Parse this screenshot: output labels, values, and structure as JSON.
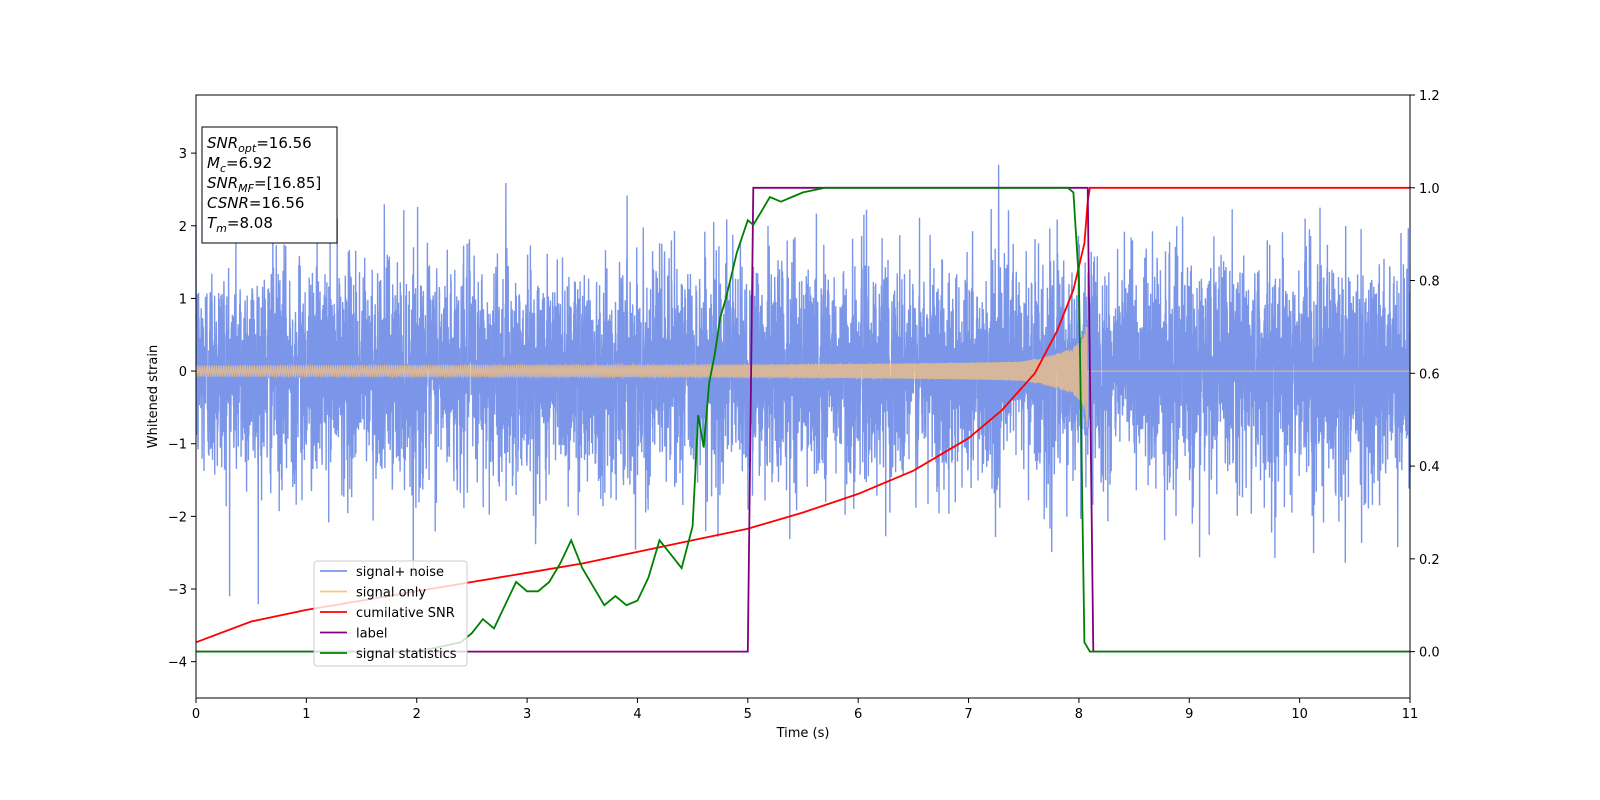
{
  "chart_data": {
    "type": "line",
    "xlabel": "Time (s)",
    "ylabel": "Whitened strain",
    "xlim": [
      0,
      11
    ],
    "ylim": [
      -4.5,
      3.8
    ],
    "ylim_right": [
      -0.1,
      1.2
    ],
    "x_ticks": [
      0,
      1,
      2,
      3,
      4,
      5,
      6,
      7,
      8,
      9,
      10,
      11
    ],
    "y_ticks": [
      -4,
      -3,
      -2,
      -1,
      0,
      1,
      2,
      3
    ],
    "y_ticks_right": [
      "0.0",
      "0.2",
      "0.4",
      "0.6",
      "0.8",
      "1.0",
      "1.2"
    ],
    "legend_position": "lower-left",
    "grid": false,
    "info_box": [
      {
        "label": "SNR",
        "sub": "opt",
        "value": "=16.56"
      },
      {
        "label": "M",
        "sub": "c",
        "value": "=6.92"
      },
      {
        "label": "SNR",
        "sub": "MF",
        "value": "=[16.85]"
      },
      {
        "label": "CSNR",
        "sub": "",
        "value": "=16.56"
      },
      {
        "label": "T",
        "sub": "m",
        "value": "=8.08"
      }
    ],
    "series": [
      {
        "name": "signal+ noise",
        "axis": "left",
        "color": "#7b96e8",
        "kind": "noise",
        "noise_std": 0.75,
        "x_range": [
          0,
          11
        ]
      },
      {
        "name": "signal only",
        "axis": "left",
        "color": "#ffc57a",
        "kind": "chirp",
        "amplitude_start": 0.07,
        "amplitude_end": 0.9,
        "merger_time": 8.08
      },
      {
        "name": "cumilative SNR",
        "axis": "right",
        "color": "#ff0000",
        "x": [
          0,
          0.5,
          1,
          1.5,
          2,
          2.5,
          3,
          3.5,
          4,
          4.5,
          5,
          5.5,
          6,
          6.5,
          7,
          7.3,
          7.6,
          7.8,
          7.95,
          8.05,
          8.08,
          8.1,
          11
        ],
        "y": [
          0.02,
          0.065,
          0.09,
          0.11,
          0.13,
          0.15,
          0.17,
          0.19,
          0.215,
          0.24,
          0.265,
          0.3,
          0.34,
          0.39,
          0.46,
          0.52,
          0.6,
          0.69,
          0.78,
          0.88,
          0.97,
          1.0,
          1.0
        ]
      },
      {
        "name": "label",
        "axis": "right",
        "color": "#800080",
        "x": [
          0,
          5.0,
          5.05,
          8.08,
          8.13,
          11
        ],
        "y": [
          0,
          0,
          1,
          1,
          0,
          0
        ]
      },
      {
        "name": "signal statistics",
        "axis": "right",
        "color": "#008000",
        "x": [
          0,
          0.5,
          1,
          1.5,
          2,
          2.2,
          2.4,
          2.5,
          2.6,
          2.7,
          2.8,
          2.9,
          3.0,
          3.1,
          3.2,
          3.3,
          3.4,
          3.5,
          3.6,
          3.7,
          3.8,
          3.9,
          4.0,
          4.1,
          4.2,
          4.3,
          4.4,
          4.5,
          4.55,
          4.6,
          4.65,
          4.7,
          4.75,
          4.8,
          4.85,
          4.9,
          5.0,
          5.05,
          5.1,
          5.2,
          5.3,
          5.4,
          5.5,
          5.7,
          6.0,
          6.5,
          7.0,
          7.5,
          7.9,
          7.95,
          8.0,
          8.05,
          8.1,
          8.2,
          11
        ],
        "y": [
          0.0,
          0.0,
          0.0,
          0.0,
          0.0,
          0.01,
          0.02,
          0.04,
          0.07,
          0.05,
          0.1,
          0.15,
          0.13,
          0.13,
          0.15,
          0.19,
          0.24,
          0.18,
          0.14,
          0.1,
          0.12,
          0.1,
          0.11,
          0.16,
          0.24,
          0.21,
          0.18,
          0.27,
          0.51,
          0.44,
          0.58,
          0.64,
          0.72,
          0.76,
          0.81,
          0.86,
          0.93,
          0.92,
          0.94,
          0.98,
          0.97,
          0.98,
          0.99,
          1.0,
          1.0,
          1.0,
          1.0,
          1.0,
          1.0,
          0.99,
          0.8,
          0.02,
          0.0,
          0.0,
          0.0
        ]
      }
    ]
  }
}
